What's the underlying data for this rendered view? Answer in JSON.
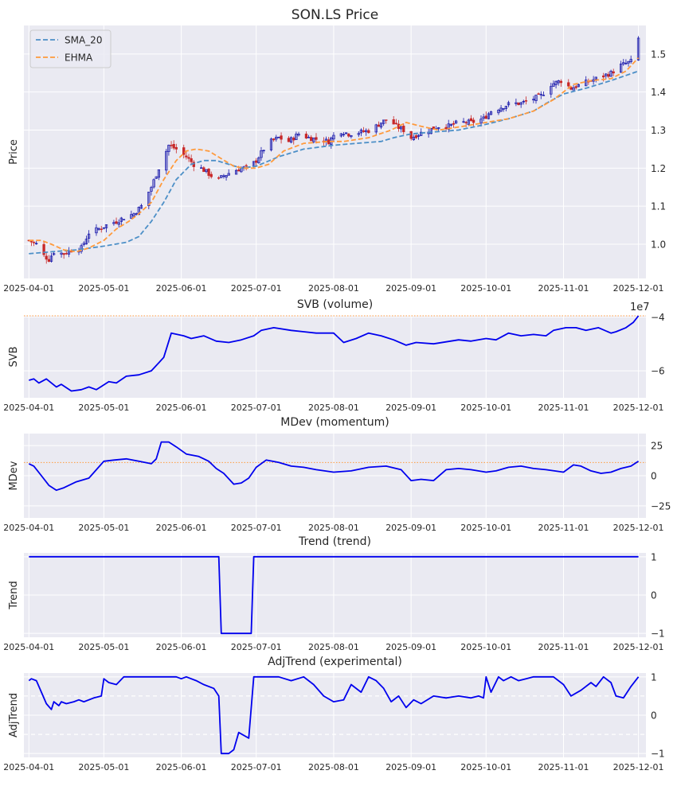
{
  "chart_data": [
    {
      "type": "candlestick",
      "title": "SON.LS Price",
      "ylabel": "Price",
      "ylim": [
        0.91,
        1.575
      ],
      "yticks": [
        1.0,
        1.1,
        1.2,
        1.3,
        1.4,
        1.5
      ],
      "ytick_labels": [
        "1.0",
        "1.1",
        "1.2",
        "1.3",
        "1.4",
        "1.5"
      ],
      "x_range": [
        "2025-03-30",
        "2025-12-04"
      ],
      "xticks": [
        "2025-04-01",
        "2025-05-01",
        "2025-06-01",
        "2025-07-01",
        "2025-08-01",
        "2025-09-01",
        "2025-10-01",
        "2025-11-01",
        "2025-12-01"
      ],
      "legend": {
        "position": "top-left",
        "entries": [
          {
            "label": "SMA_20",
            "color": "#4c8fc7",
            "dash": "dashed"
          },
          {
            "label": "EHMA",
            "color": "#ff9a3c",
            "dash": "dashed"
          }
        ]
      },
      "colors": {
        "up": "#1515aa",
        "down": "#c82828",
        "sma": "#4c8fc7",
        "ehma": "#ff9a3c"
      },
      "close_path": {
        "x": [
          "2025-04-01",
          "2025-04-04",
          "2025-04-07",
          "2025-04-09",
          "2025-04-11",
          "2025-04-15",
          "2025-04-18",
          "2025-04-22",
          "2025-04-25",
          "2025-04-29",
          "2025-05-02",
          "2025-05-06",
          "2025-05-09",
          "2025-05-13",
          "2025-05-16",
          "2025-05-20",
          "2025-05-23",
          "2025-05-25",
          "2025-05-27",
          "2025-05-30",
          "2025-06-03",
          "2025-06-06",
          "2025-06-10",
          "2025-06-13",
          "2025-06-16",
          "2025-06-18",
          "2025-06-21",
          "2025-06-25",
          "2025-06-28",
          "2025-07-01",
          "2025-07-04",
          "2025-07-07",
          "2025-07-10",
          "2025-07-14",
          "2025-07-18",
          "2025-07-22",
          "2025-07-26",
          "2025-07-30",
          "2025-08-03",
          "2025-08-07",
          "2025-08-12",
          "2025-08-16",
          "2025-08-20",
          "2025-08-23",
          "2025-08-26",
          "2025-08-29",
          "2025-09-01",
          "2025-09-04",
          "2025-09-08",
          "2025-09-12",
          "2025-09-16",
          "2025-09-20",
          "2025-09-25",
          "2025-09-30",
          "2025-10-03",
          "2025-10-07",
          "2025-10-11",
          "2025-10-15",
          "2025-10-19",
          "2025-10-23",
          "2025-10-27",
          "2025-10-31",
          "2025-11-04",
          "2025-11-08",
          "2025-11-12",
          "2025-11-16",
          "2025-11-20",
          "2025-11-24",
          "2025-11-28",
          "2025-12-01"
        ],
        "y": [
          1.01,
          1.0,
          0.97,
          0.96,
          0.98,
          0.975,
          0.985,
          0.99,
          1.03,
          1.04,
          1.05,
          1.06,
          1.07,
          1.08,
          1.1,
          1.15,
          1.2,
          1.23,
          1.26,
          1.25,
          1.23,
          1.21,
          1.195,
          1.18,
          1.17,
          1.18,
          1.19,
          1.2,
          1.2,
          1.22,
          1.25,
          1.27,
          1.28,
          1.27,
          1.29,
          1.28,
          1.275,
          1.27,
          1.3,
          1.29,
          1.295,
          1.3,
          1.32,
          1.33,
          1.31,
          1.3,
          1.28,
          1.29,
          1.3,
          1.31,
          1.31,
          1.32,
          1.32,
          1.33,
          1.35,
          1.36,
          1.37,
          1.37,
          1.38,
          1.39,
          1.42,
          1.43,
          1.41,
          1.42,
          1.43,
          1.44,
          1.45,
          1.47,
          1.48,
          1.54
        ]
      },
      "sma_20": {
        "x": [
          "2025-04-01",
          "2025-04-10",
          "2025-04-20",
          "2025-05-01",
          "2025-05-10",
          "2025-05-15",
          "2025-05-20",
          "2025-05-25",
          "2025-05-30",
          "2025-06-05",
          "2025-06-10",
          "2025-06-15",
          "2025-06-20",
          "2025-06-25",
          "2025-07-01",
          "2025-07-10",
          "2025-07-20",
          "2025-08-01",
          "2025-08-10",
          "2025-08-20",
          "2025-08-25",
          "2025-09-01",
          "2025-09-10",
          "2025-09-20",
          "2025-10-01",
          "2025-10-10",
          "2025-10-20",
          "2025-10-25",
          "2025-11-01",
          "2025-11-10",
          "2025-11-20",
          "2025-12-01"
        ],
        "y": [
          0.975,
          0.98,
          0.985,
          0.995,
          1.005,
          1.02,
          1.06,
          1.11,
          1.17,
          1.21,
          1.22,
          1.22,
          1.21,
          1.2,
          1.205,
          1.23,
          1.25,
          1.26,
          1.265,
          1.27,
          1.28,
          1.29,
          1.295,
          1.3,
          1.315,
          1.33,
          1.35,
          1.37,
          1.395,
          1.41,
          1.43,
          1.455
        ]
      },
      "ehma": {
        "x": [
          "2025-04-01",
          "2025-04-06",
          "2025-04-10",
          "2025-04-15",
          "2025-04-20",
          "2025-04-25",
          "2025-05-01",
          "2025-05-06",
          "2025-05-11",
          "2025-05-15",
          "2025-05-20",
          "2025-05-25",
          "2025-05-30",
          "2025-06-03",
          "2025-06-07",
          "2025-06-12",
          "2025-06-17",
          "2025-06-22",
          "2025-06-26",
          "2025-07-01",
          "2025-07-06",
          "2025-07-12",
          "2025-07-20",
          "2025-07-30",
          "2025-08-05",
          "2025-08-15",
          "2025-08-24",
          "2025-08-30",
          "2025-09-05",
          "2025-09-12",
          "2025-09-22",
          "2025-10-01",
          "2025-10-10",
          "2025-10-20",
          "2025-10-28",
          "2025-11-05",
          "2025-11-12",
          "2025-11-20",
          "2025-11-26",
          "2025-12-01"
        ],
        "y": [
          1.01,
          1.01,
          1.0,
          0.985,
          0.98,
          0.99,
          1.01,
          1.04,
          1.06,
          1.08,
          1.11,
          1.17,
          1.22,
          1.245,
          1.25,
          1.245,
          1.225,
          1.205,
          1.2,
          1.2,
          1.21,
          1.245,
          1.265,
          1.27,
          1.27,
          1.28,
          1.3,
          1.32,
          1.31,
          1.3,
          1.31,
          1.32,
          1.33,
          1.35,
          1.38,
          1.42,
          1.43,
          1.435,
          1.455,
          1.49
        ]
      }
    },
    {
      "type": "line",
      "title": "SVB (volume)",
      "ylabel": "SVB",
      "offset_label": "1e7",
      "ylim": [
        -7.0,
        -3.96
      ],
      "yticks": [
        -6,
        -4
      ],
      "ytick_labels": [
        "−6",
        "−4"
      ],
      "xticks": [
        "2025-04-01",
        "2025-05-01",
        "2025-06-01",
        "2025-07-01",
        "2025-08-01",
        "2025-09-01",
        "2025-10-01",
        "2025-11-01",
        "2025-12-01"
      ],
      "hline": {
        "y": -3.96,
        "color": "#ff9a3c",
        "style": "dotted"
      },
      "series": [
        {
          "name": "SVB",
          "color": "#0000ee",
          "x": [
            "2025-04-01",
            "2025-04-03",
            "2025-04-05",
            "2025-04-08",
            "2025-04-12",
            "2025-04-14",
            "2025-04-18",
            "2025-04-22",
            "2025-04-25",
            "2025-04-28",
            "2025-05-03",
            "2025-05-06",
            "2025-05-10",
            "2025-05-15",
            "2025-05-20",
            "2025-05-23",
            "2025-05-25",
            "2025-05-28",
            "2025-06-02",
            "2025-06-05",
            "2025-06-10",
            "2025-06-15",
            "2025-06-20",
            "2025-06-25",
            "2025-06-30",
            "2025-07-03",
            "2025-07-08",
            "2025-07-15",
            "2025-07-20",
            "2025-07-25",
            "2025-08-01",
            "2025-08-05",
            "2025-08-10",
            "2025-08-15",
            "2025-08-20",
            "2025-08-25",
            "2025-08-30",
            "2025-09-03",
            "2025-09-10",
            "2025-09-20",
            "2025-09-25",
            "2025-10-01",
            "2025-10-05",
            "2025-10-10",
            "2025-10-15",
            "2025-10-20",
            "2025-10-25",
            "2025-10-28",
            "2025-11-02",
            "2025-11-06",
            "2025-11-10",
            "2025-11-15",
            "2025-11-20",
            "2025-11-22",
            "2025-11-26",
            "2025-11-29",
            "2025-12-01"
          ],
          "y": [
            -6.35,
            -6.3,
            -6.45,
            -6.3,
            -6.6,
            -6.5,
            -6.75,
            -6.7,
            -6.6,
            -6.7,
            -6.4,
            -6.45,
            -6.2,
            -6.15,
            -6.0,
            -5.7,
            -5.5,
            -4.6,
            -4.7,
            -4.8,
            -4.7,
            -4.9,
            -4.95,
            -4.85,
            -4.7,
            -4.5,
            -4.4,
            -4.5,
            -4.55,
            -4.6,
            -4.6,
            -4.95,
            -4.8,
            -4.6,
            -4.7,
            -4.85,
            -5.05,
            -4.95,
            -5.0,
            -4.85,
            -4.9,
            -4.8,
            -4.85,
            -4.6,
            -4.7,
            -4.65,
            -4.7,
            -4.5,
            -4.4,
            -4.4,
            -4.5,
            -4.4,
            -4.6,
            -4.55,
            -4.4,
            -4.2,
            -3.96
          ]
        }
      ]
    },
    {
      "type": "line",
      "title": "MDev (momentum)",
      "ylabel": "MDev",
      "ylim": [
        -35,
        35
      ],
      "yticks": [
        -25,
        0,
        25
      ],
      "ytick_labels": [
        "−25",
        "0",
        "25"
      ],
      "xticks": [
        "2025-04-01",
        "2025-05-01",
        "2025-06-01",
        "2025-07-01",
        "2025-08-01",
        "2025-09-01",
        "2025-10-01",
        "2025-11-01",
        "2025-12-01"
      ],
      "hline": {
        "y": 11,
        "color": "#ff9a3c",
        "style": "dotted"
      },
      "series": [
        {
          "name": "MDev",
          "color": "#0000ee",
          "x": [
            "2025-04-01",
            "2025-04-03",
            "2025-04-06",
            "2025-04-09",
            "2025-04-12",
            "2025-04-15",
            "2025-04-20",
            "2025-04-25",
            "2025-05-01",
            "2025-05-05",
            "2025-05-10",
            "2025-05-15",
            "2025-05-20",
            "2025-05-22",
            "2025-05-24",
            "2025-05-27",
            "2025-05-30",
            "2025-06-03",
            "2025-06-08",
            "2025-06-12",
            "2025-06-15",
            "2025-06-18",
            "2025-06-22",
            "2025-06-25",
            "2025-06-28",
            "2025-07-01",
            "2025-07-05",
            "2025-07-10",
            "2025-07-15",
            "2025-07-20",
            "2025-07-25",
            "2025-08-01",
            "2025-08-08",
            "2025-08-15",
            "2025-08-22",
            "2025-08-28",
            "2025-09-01",
            "2025-09-05",
            "2025-09-10",
            "2025-09-15",
            "2025-09-20",
            "2025-09-25",
            "2025-10-01",
            "2025-10-05",
            "2025-10-10",
            "2025-10-15",
            "2025-10-20",
            "2025-10-25",
            "2025-11-01",
            "2025-11-05",
            "2025-11-08",
            "2025-11-12",
            "2025-11-16",
            "2025-11-20",
            "2025-11-24",
            "2025-11-28",
            "2025-12-01"
          ],
          "y": [
            10,
            8,
            0,
            -8,
            -12,
            -10,
            -5,
            -2,
            12,
            13,
            14,
            12,
            10,
            14,
            28,
            28,
            24,
            18,
            16,
            12,
            6,
            2,
            -7,
            -6,
            -2,
            7,
            13,
            11,
            8,
            7,
            5,
            3,
            4,
            7,
            8,
            5,
            -4,
            -3,
            -4,
            5,
            6,
            5,
            3,
            4,
            7,
            8,
            6,
            5,
            3,
            9,
            8,
            4,
            2,
            3,
            6,
            8,
            12
          ]
        }
      ]
    },
    {
      "type": "line",
      "title": "Trend (trend)",
      "ylabel": "Trend",
      "ylim": [
        -1.1,
        1.1
      ],
      "yticks": [
        -1,
        0,
        1
      ],
      "ytick_labels": [
        "−1",
        "0",
        "1"
      ],
      "xticks": [
        "2025-04-01",
        "2025-05-01",
        "2025-06-01",
        "2025-07-01",
        "2025-08-01",
        "2025-09-01",
        "2025-10-01",
        "2025-11-01",
        "2025-12-01"
      ],
      "series": [
        {
          "name": "Trend",
          "color": "#0000ee",
          "x": [
            "2025-04-01",
            "2025-06-16",
            "2025-06-17",
            "2025-06-29",
            "2025-06-30",
            "2025-12-01"
          ],
          "y": [
            1,
            1,
            -1,
            -1,
            1,
            1
          ]
        }
      ]
    },
    {
      "type": "line",
      "title": "AdjTrend (experimental)",
      "ylabel": "AdjTrend",
      "ylim": [
        -1.1,
        1.1
      ],
      "yticks": [
        -1,
        0,
        1
      ],
      "ytick_labels": [
        "−1",
        "0",
        "1"
      ],
      "xticks": [
        "2025-04-01",
        "2025-05-01",
        "2025-06-01",
        "2025-07-01",
        "2025-08-01",
        "2025-09-01",
        "2025-10-01",
        "2025-11-01",
        "2025-12-01"
      ],
      "hlines": [
        {
          "y": 0.5,
          "color": "#ffffff",
          "style": "dashed"
        },
        {
          "y": -0.5,
          "color": "#ffffff",
          "style": "dashed"
        }
      ],
      "series": [
        {
          "name": "AdjTrend",
          "color": "#0000ee",
          "x": [
            "2025-04-01",
            "2025-04-02",
            "2025-04-04",
            "2025-04-06",
            "2025-04-08",
            "2025-04-10",
            "2025-04-11",
            "2025-04-13",
            "2025-04-14",
            "2025-04-16",
            "2025-04-19",
            "2025-04-21",
            "2025-04-23",
            "2025-04-27",
            "2025-04-30",
            "2025-05-01",
            "2025-05-03",
            "2025-05-06",
            "2025-05-09",
            "2025-05-12",
            "2025-05-20",
            "2025-05-25",
            "2025-05-30",
            "2025-06-01",
            "2025-06-03",
            "2025-06-07",
            "2025-06-10",
            "2025-06-14",
            "2025-06-16",
            "2025-06-17",
            "2025-06-20",
            "2025-06-22",
            "2025-06-24",
            "2025-06-28",
            "2025-06-30",
            "2025-07-02",
            "2025-07-10",
            "2025-07-15",
            "2025-07-20",
            "2025-07-24",
            "2025-07-28",
            "2025-08-01",
            "2025-08-05",
            "2025-08-08",
            "2025-08-12",
            "2025-08-15",
            "2025-08-18",
            "2025-08-21",
            "2025-08-24",
            "2025-08-27",
            "2025-08-30",
            "2025-09-02",
            "2025-09-05",
            "2025-09-10",
            "2025-09-15",
            "2025-09-20",
            "2025-09-25",
            "2025-09-28",
            "2025-09-30",
            "2025-10-01",
            "2025-10-03",
            "2025-10-06",
            "2025-10-08",
            "2025-10-11",
            "2025-10-14",
            "2025-10-17",
            "2025-10-20",
            "2025-10-28",
            "2025-11-01",
            "2025-11-04",
            "2025-11-08",
            "2025-11-12",
            "2025-11-14",
            "2025-11-17",
            "2025-11-20",
            "2025-11-22",
            "2025-11-25",
            "2025-11-28",
            "2025-12-01"
          ],
          "y": [
            0.9,
            0.95,
            0.9,
            0.6,
            0.3,
            0.15,
            0.35,
            0.25,
            0.35,
            0.3,
            0.35,
            0.4,
            0.35,
            0.45,
            0.5,
            0.95,
            0.85,
            0.8,
            1.0,
            1.0,
            1.0,
            1.0,
            1.0,
            0.95,
            1.0,
            0.9,
            0.8,
            0.7,
            0.5,
            -1.0,
            -1.0,
            -0.9,
            -0.45,
            -0.6,
            1.0,
            1.0,
            1.0,
            0.9,
            1.0,
            0.8,
            0.5,
            0.35,
            0.4,
            0.8,
            0.6,
            1.0,
            0.9,
            0.7,
            0.35,
            0.5,
            0.2,
            0.4,
            0.3,
            0.5,
            0.45,
            0.5,
            0.45,
            0.5,
            0.45,
            1.0,
            0.6,
            1.0,
            0.9,
            1.0,
            0.9,
            0.95,
            1.0,
            1.0,
            0.8,
            0.5,
            0.65,
            0.85,
            0.75,
            1.0,
            0.85,
            0.5,
            0.45,
            0.75,
            1.0
          ]
        }
      ]
    }
  ]
}
